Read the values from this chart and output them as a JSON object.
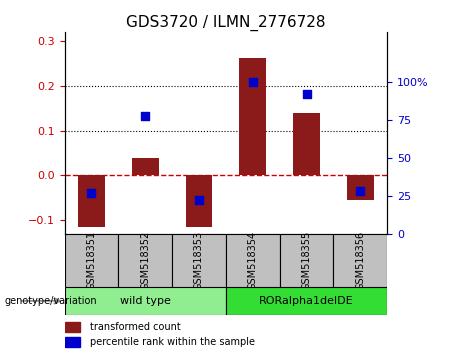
{
  "title": "GDS3720 / ILMN_2776728",
  "samples": [
    "GSM518351",
    "GSM518352",
    "GSM518353",
    "GSM518354",
    "GSM518355",
    "GSM518356"
  ],
  "transformed_count": [
    -0.115,
    0.038,
    -0.115,
    0.262,
    0.138,
    -0.055
  ],
  "percentile_rank": [
    27,
    78,
    22,
    100,
    92,
    28
  ],
  "ylim_left": [
    -0.13,
    0.32
  ],
  "ylim_right": [
    0,
    133.33
  ],
  "yticks_left": [
    -0.1,
    0.0,
    0.1,
    0.2,
    0.3
  ],
  "yticks_right": [
    0,
    25,
    50,
    75,
    100
  ],
  "groups": [
    {
      "label": "wild type",
      "samples": [
        0,
        1,
        2
      ],
      "color": "#90EE90"
    },
    {
      "label": "RORalpha1delDE",
      "samples": [
        3,
        4,
        5
      ],
      "color": "#33DD33"
    }
  ],
  "bar_color": "#8B1A1A",
  "dot_color": "#0000CC",
  "zero_line_color": "#CC0000",
  "grid_color": "#000000",
  "bar_width": 0.5,
  "dot_size": 30,
  "legend_items": [
    "transformed count",
    "percentile rank within the sample"
  ],
  "genotype_label": "genotype/variation",
  "background_color": "#FFFFFF",
  "plot_bg_color": "#FFFFFF",
  "tick_label_size": 7,
  "title_size": 11,
  "label_bg_color": "#C0C0C0",
  "right_tick_labels": [
    "0",
    "25",
    "50",
    "75",
    "100%"
  ]
}
